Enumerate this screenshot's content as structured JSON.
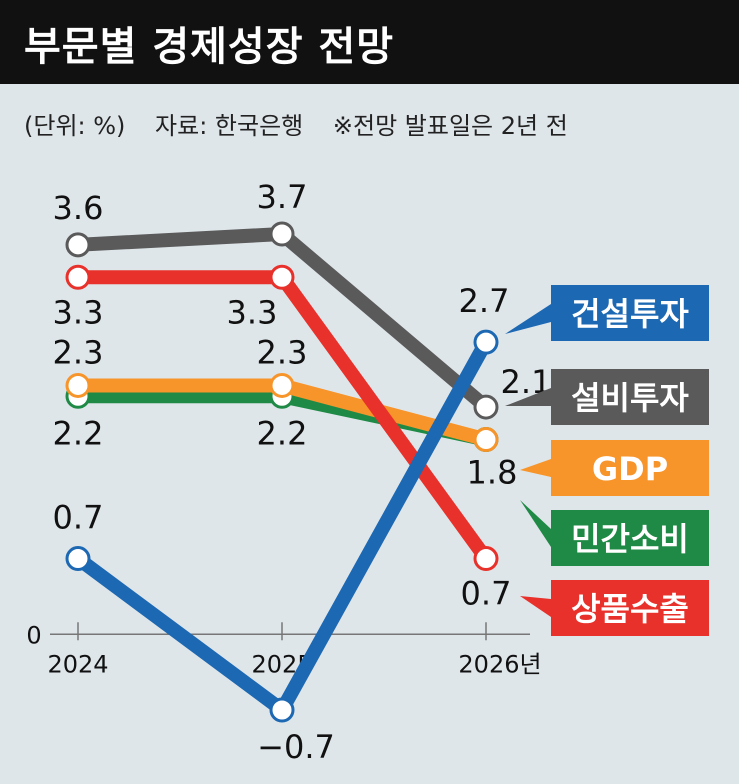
{
  "title": "부문별 경제성장 전망",
  "meta": {
    "unit": "(단위: %)",
    "source": "자료: 한국은행",
    "note": "※전망 발표일은 2년 전"
  },
  "chart_data": {
    "type": "line",
    "categories": [
      "2024",
      "2025",
      "2026년"
    ],
    "zero_label": "0",
    "ylim": [
      -0.7,
      3.7
    ],
    "series": [
      {
        "name": "설비투자",
        "values": [
          3.6,
          3.7,
          2.1
        ],
        "labels": [
          "3.6",
          "3.7",
          "2.1"
        ],
        "color": "#5a5a5a"
      },
      {
        "name": "상품수출",
        "values": [
          3.3,
          3.3,
          0.7
        ],
        "labels": [
          "3.3",
          "3.3",
          "0.7"
        ],
        "color": "#e8312a"
      },
      {
        "name": "민간소비",
        "values": [
          2.2,
          2.2,
          1.8
        ],
        "labels": [
          "2.2",
          "2.2",
          ""
        ],
        "color": "#1f8a45"
      },
      {
        "name": "GDP",
        "values": [
          2.3,
          2.3,
          1.8
        ],
        "labels": [
          "2.3",
          "2.3",
          "1.8"
        ],
        "color": "#f7942a"
      },
      {
        "name": "건설투자",
        "values": [
          0.7,
          -0.7,
          2.7
        ],
        "labels": [
          "0.7",
          "−0.7",
          "2.7"
        ],
        "color": "#1d68b3"
      }
    ]
  }
}
